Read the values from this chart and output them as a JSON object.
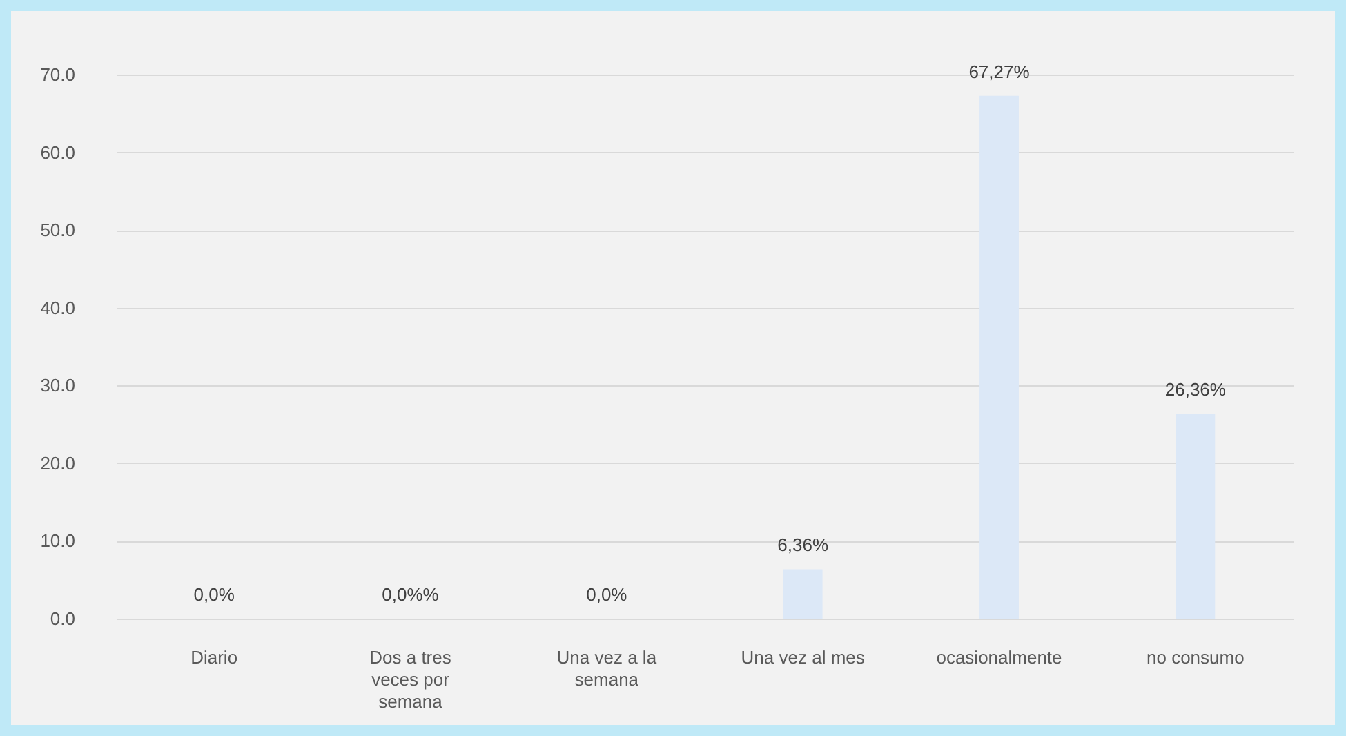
{
  "chart_data": {
    "type": "bar",
    "categories": [
      "Diario",
      "Dos a  tres veces por semana",
      "Una vez a la semana",
      "Una vez  al mes",
      "ocasionalmente",
      "no consumo"
    ],
    "values": [
      0,
      0,
      0,
      6.36,
      67.27,
      26.36
    ],
    "value_labels": [
      "0,0%",
      "0,0%%",
      "0,0%",
      "6,36%",
      "67,27%",
      "26,36%"
    ],
    "color": "#dce8f7",
    "ylim": [
      0,
      70
    ],
    "yticks": [
      {
        "value": 0,
        "label": "0.0"
      },
      {
        "value": 10,
        "label": "10.0"
      },
      {
        "value": 20,
        "label": "20.0"
      },
      {
        "value": 30,
        "label": "30.0"
      },
      {
        "value": 40,
        "label": "40.0"
      },
      {
        "value": 50,
        "label": "50.0"
      },
      {
        "value": 60,
        "label": "60.0"
      },
      {
        "value": 70,
        "label": "70.0"
      }
    ],
    "grid": "y"
  }
}
